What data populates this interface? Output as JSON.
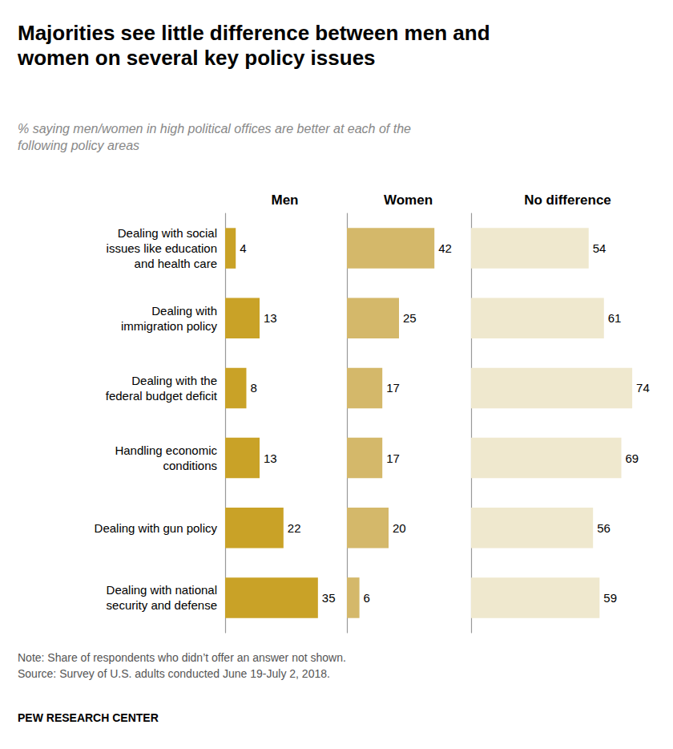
{
  "chart_data": {
    "type": "bar",
    "orientation": "horizontal",
    "title": "Majorities see little difference between men and\nwomen on several key policy issues",
    "subtitle": "% saying men/women in high political offices are better at each of the\nfollowing policy areas",
    "categories": [
      "Dealing with social\nissues like education\nand health care",
      "Dealing with\nimmigration policy",
      "Dealing with the\nfederal budget deficit",
      "Handling economic\nconditions",
      "Dealing with gun policy",
      "Dealing with national\nsecurity and defense"
    ],
    "series": [
      {
        "name": "Men",
        "color": "#C9A227",
        "values": [
          4,
          13,
          8,
          13,
          22,
          35
        ],
        "xlim": [
          0,
          42
        ]
      },
      {
        "name": "Women",
        "color": "#D4B86A",
        "values": [
          42,
          25,
          17,
          17,
          20,
          6
        ],
        "xlim": [
          0,
          55
        ]
      },
      {
        "name": "No difference",
        "color": "#EFE8CE",
        "values": [
          54,
          61,
          74,
          69,
          56,
          59
        ],
        "xlim": [
          0,
          85
        ]
      }
    ],
    "data_labels": true,
    "tick_labels": "y",
    "grid": false,
    "note": "Note: Share of respondents who didn’t offer an answer not shown.\nSource: Survey of U.S. adults conducted June 19-July 2, 2018.",
    "source": "PEW RESEARCH CENTER"
  }
}
